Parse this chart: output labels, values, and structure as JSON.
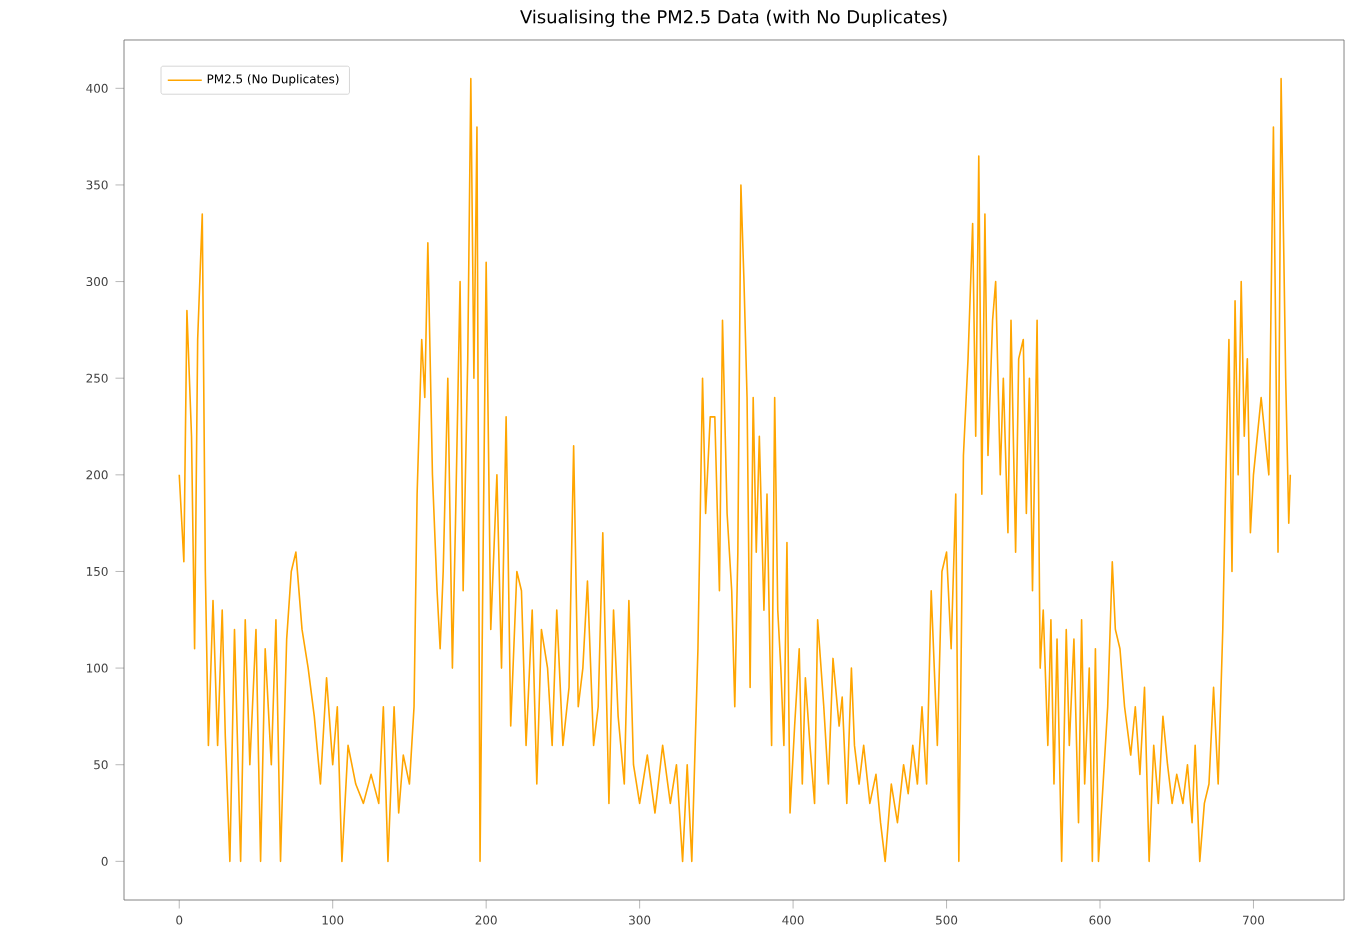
{
  "chart_data": {
    "type": "line",
    "title": "Visualising the PM2.5 Data (with No Duplicates)",
    "xlim": [
      -36,
      759
    ],
    "ylim": [
      -20,
      425
    ],
    "xticks": [
      0,
      100,
      200,
      300,
      400,
      500,
      600,
      700
    ],
    "yticks": [
      0,
      50,
      100,
      150,
      200,
      250,
      300,
      350,
      400
    ],
    "legend": "top left",
    "grid": false,
    "series": [
      {
        "name": "PM2.5 (No Duplicates)",
        "color": "#ffa500",
        "x": [
          0,
          3,
          5,
          8,
          10,
          12,
          15,
          17,
          19,
          22,
          25,
          28,
          30,
          33,
          36,
          40,
          43,
          46,
          50,
          53,
          56,
          60,
          63,
          66,
          70,
          73,
          76,
          80,
          84,
          88,
          92,
          96,
          100,
          103,
          106,
          110,
          115,
          120,
          125,
          130,
          133,
          136,
          140,
          143,
          146,
          150,
          153,
          155,
          158,
          160,
          162,
          165,
          168,
          170,
          172,
          175,
          178,
          180,
          183,
          185,
          188,
          190,
          192,
          194,
          196,
          198,
          200,
          203,
          205,
          207,
          210,
          213,
          216,
          220,
          223,
          226,
          230,
          233,
          236,
          240,
          243,
          246,
          250,
          254,
          257,
          260,
          263,
          266,
          270,
          273,
          276,
          280,
          283,
          286,
          290,
          293,
          296,
          300,
          305,
          310,
          315,
          320,
          324,
          328,
          331,
          334,
          338,
          341,
          343,
          346,
          349,
          352,
          354,
          357,
          360,
          362,
          364,
          366,
          368,
          370,
          372,
          374,
          376,
          378,
          381,
          383,
          386,
          388,
          390,
          392,
          394,
          396,
          398,
          401,
          404,
          406,
          408,
          411,
          414,
          416,
          420,
          423,
          426,
          430,
          432,
          435,
          438,
          440,
          443,
          446,
          450,
          454,
          457,
          460,
          464,
          468,
          472,
          475,
          478,
          481,
          484,
          487,
          490,
          494,
          497,
          500,
          503,
          506,
          508,
          511,
          514,
          517,
          519,
          521,
          523,
          525,
          527,
          530,
          532,
          535,
          537,
          540,
          542,
          545,
          547,
          550,
          552,
          554,
          556,
          559,
          561,
          563,
          566,
          568,
          570,
          572,
          575,
          578,
          580,
          583,
          586,
          588,
          590,
          593,
          595,
          597,
          599,
          602,
          605,
          608,
          610,
          613,
          616,
          620,
          623,
          626,
          629,
          632,
          635,
          638,
          641,
          644,
          647,
          650,
          654,
          657,
          660,
          662,
          665,
          668,
          671,
          674,
          677,
          680,
          682,
          684,
          686,
          688,
          690,
          692,
          694,
          696,
          698,
          700,
          705,
          710,
          713,
          716,
          718,
          721,
          723,
          724
        ],
        "values": [
          200,
          155,
          285,
          220,
          110,
          270,
          335,
          150,
          60,
          135,
          60,
          130,
          65,
          0,
          120,
          0,
          125,
          50,
          120,
          0,
          110,
          50,
          125,
          0,
          115,
          150,
          160,
          120,
          100,
          75,
          40,
          95,
          50,
          80,
          0,
          60,
          40,
          30,
          45,
          30,
          80,
          0,
          80,
          25,
          55,
          40,
          80,
          190,
          270,
          240,
          320,
          200,
          140,
          110,
          150,
          250,
          100,
          175,
          300,
          140,
          260,
          405,
          250,
          380,
          0,
          160,
          310,
          120,
          160,
          200,
          100,
          230,
          70,
          150,
          140,
          60,
          130,
          40,
          120,
          100,
          60,
          130,
          60,
          90,
          215,
          80,
          100,
          145,
          60,
          80,
          170,
          30,
          130,
          75,
          40,
          135,
          50,
          30,
          55,
          25,
          60,
          30,
          50,
          0,
          50,
          0,
          110,
          250,
          180,
          230,
          230,
          140,
          280,
          180,
          140,
          80,
          160,
          350,
          300,
          240,
          90,
          240,
          160,
          220,
          130,
          190,
          60,
          240,
          130,
          100,
          60,
          165,
          25,
          70,
          110,
          40,
          95,
          60,
          30,
          125,
          80,
          40,
          105,
          70,
          85,
          30,
          100,
          60,
          40,
          60,
          30,
          45,
          20,
          0,
          40,
          20,
          50,
          35,
          60,
          40,
          80,
          40,
          140,
          60,
          150,
          160,
          110,
          190,
          0,
          210,
          260,
          330,
          220,
          365,
          190,
          335,
          210,
          280,
          300,
          200,
          250,
          170,
          280,
          160,
          260,
          270,
          180,
          250,
          140,
          280,
          100,
          130,
          60,
          125,
          40,
          115,
          0,
          120,
          60,
          115,
          20,
          125,
          40,
          100,
          0,
          110,
          0,
          40,
          80,
          155,
          120,
          110,
          80,
          55,
          80,
          45,
          90,
          0,
          60,
          30,
          75,
          50,
          30,
          45,
          30,
          50,
          20,
          60,
          0,
          30,
          40,
          90,
          40,
          120,
          200,
          270,
          150,
          290,
          200,
          300,
          220,
          260,
          170,
          200,
          240,
          200,
          380,
          160,
          405,
          250,
          175,
          200
        ]
      }
    ]
  }
}
